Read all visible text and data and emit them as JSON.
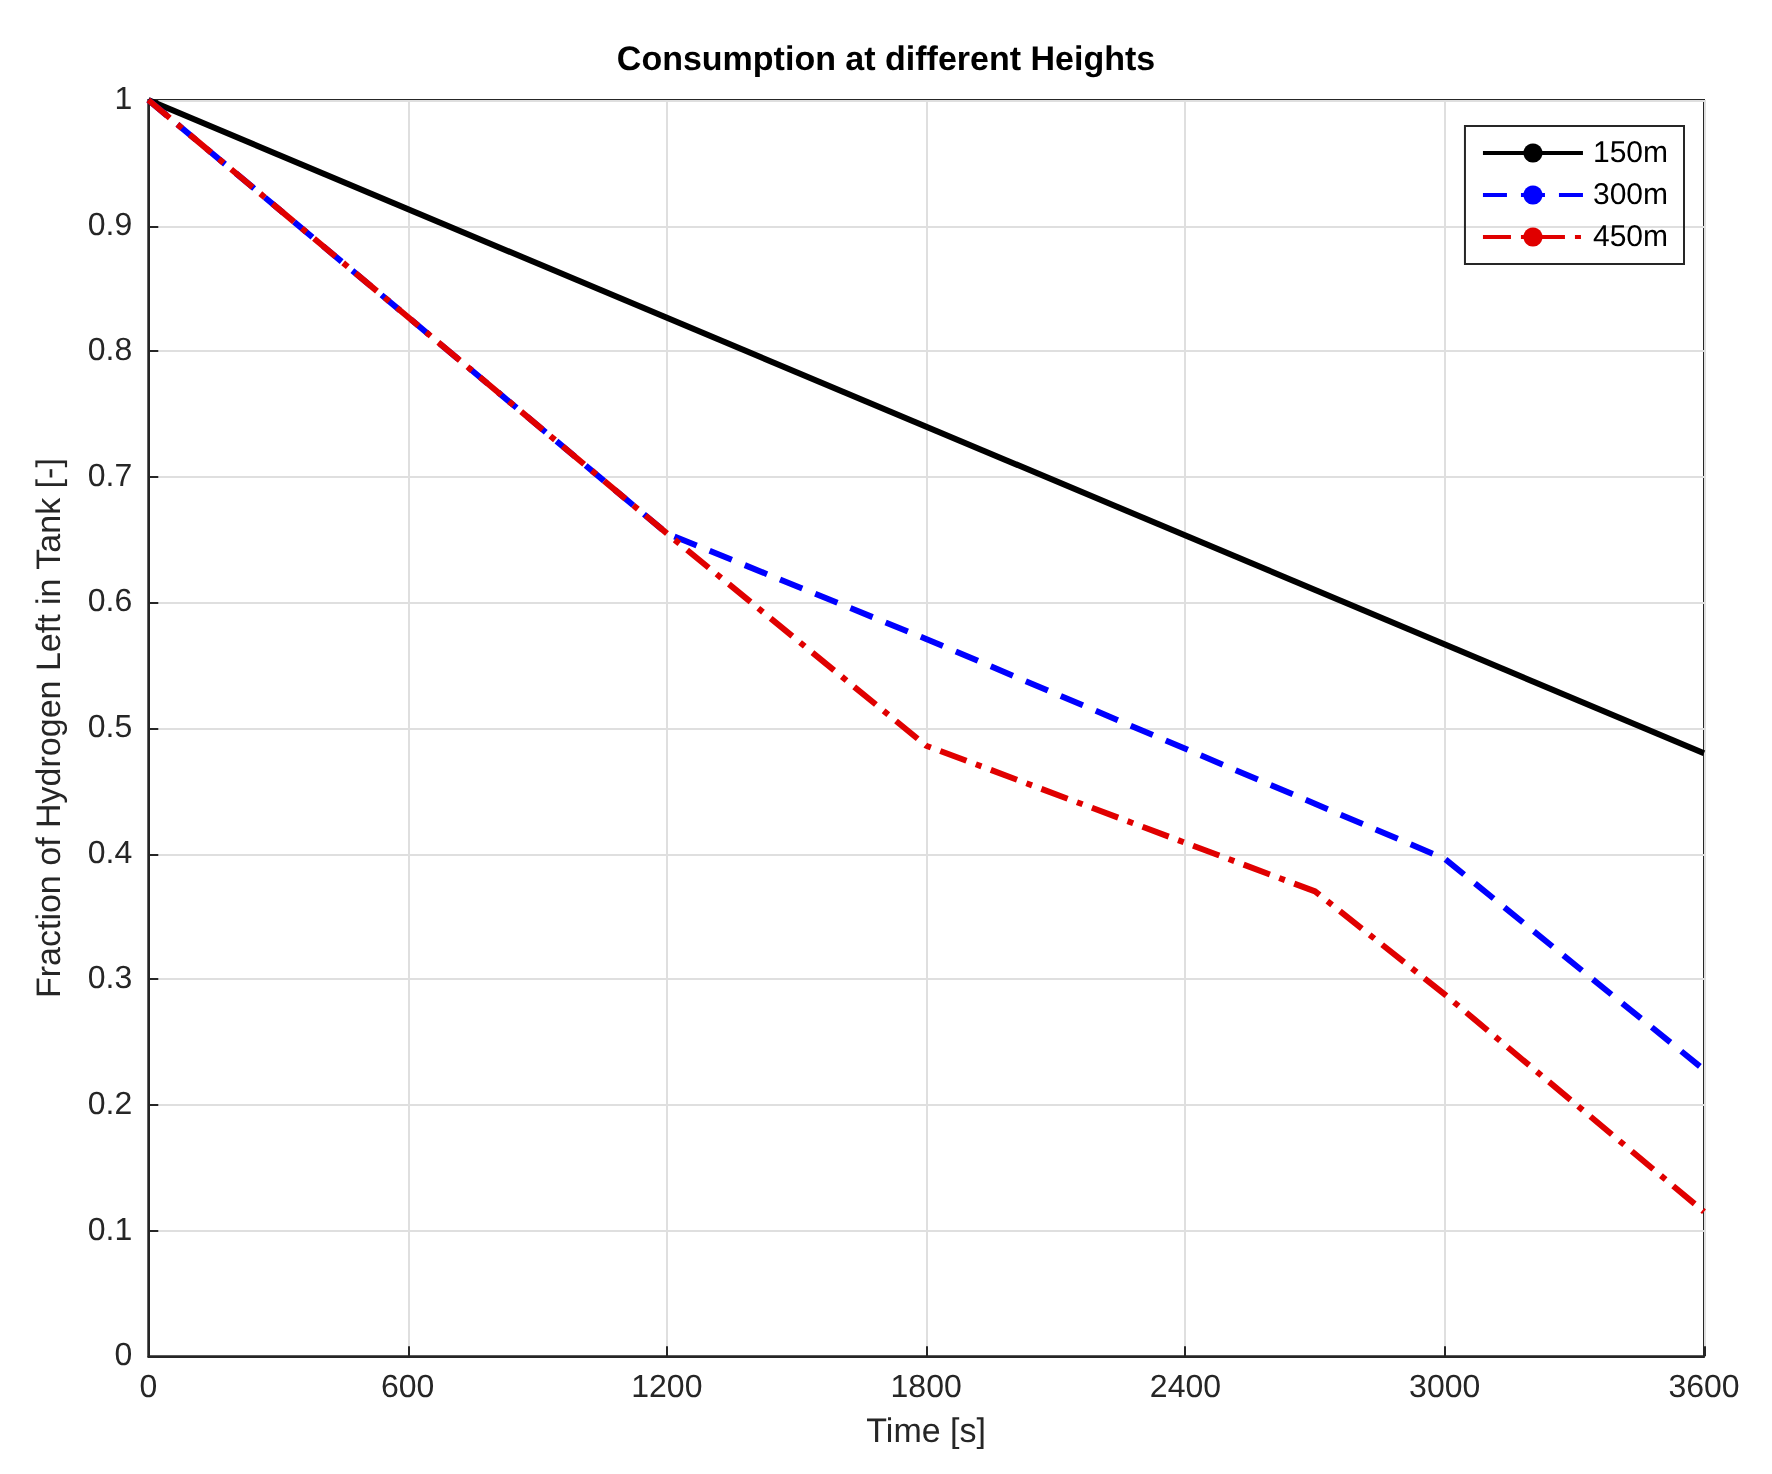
{
  "chart_data": {
    "type": "line",
    "title": "Consumption at different Heights",
    "xlabel": "Time [s]",
    "ylabel": "Fraction of Hydrogen Left in Tank [-]",
    "series": [
      {
        "name": "150m",
        "color": "#000000",
        "line_style": "solid",
        "x": [
          0,
          3600
        ],
        "values": [
          1,
          0.48
        ]
      },
      {
        "name": "300m",
        "color": "#0000ff",
        "line_style": "dashed",
        "x": [
          0,
          1200,
          1800,
          3000,
          3600
        ],
        "values": [
          1,
          0.655,
          0.571,
          0.396,
          0.228
        ]
      },
      {
        "name": "450m",
        "color": "#e00000",
        "line_style": "dashdot",
        "x": [
          0,
          1200,
          1800,
          2700,
          3000,
          3600
        ],
        "values": [
          1,
          0.655,
          0.486,
          0.37,
          0.288,
          0.115
        ]
      }
    ],
    "xlim": [
      0,
      3600
    ],
    "xticks": [
      0,
      600,
      1200,
      1800,
      2400,
      3000,
      3600
    ],
    "ylim": [
      0,
      1
    ],
    "yticks": [
      0,
      0.1,
      0.2,
      0.3,
      0.4,
      0.5,
      0.6,
      0.7,
      0.8,
      0.9,
      1
    ],
    "grid": true,
    "legend": "top right",
    "marker": "none"
  }
}
